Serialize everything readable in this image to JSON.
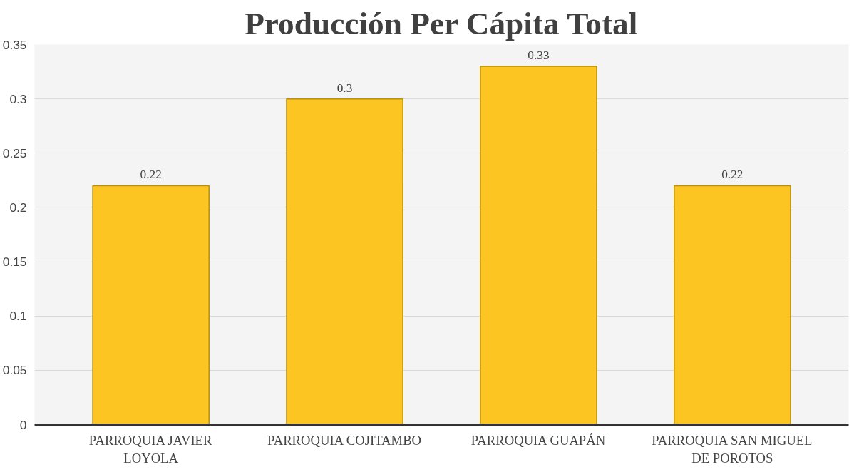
{
  "chart_data": {
    "type": "bar",
    "title": "Producción Per Cápita Total",
    "categories": [
      "PARROQUIA JAVIER LOYOLA",
      "PARROQUIA COJITAMBO",
      "PARROQUIA GUAPÁN",
      "PARROQUIA SAN MIGUEL DE POROTOS"
    ],
    "values": [
      0.22,
      0.3,
      0.33,
      0.22
    ],
    "color": "#fcc521",
    "ylim": [
      0,
      0.35
    ],
    "yticks": [
      0,
      0.05,
      0.1,
      0.15,
      0.2,
      0.25,
      0.3,
      0.35
    ],
    "grid": "y",
    "data_labels": true
  }
}
